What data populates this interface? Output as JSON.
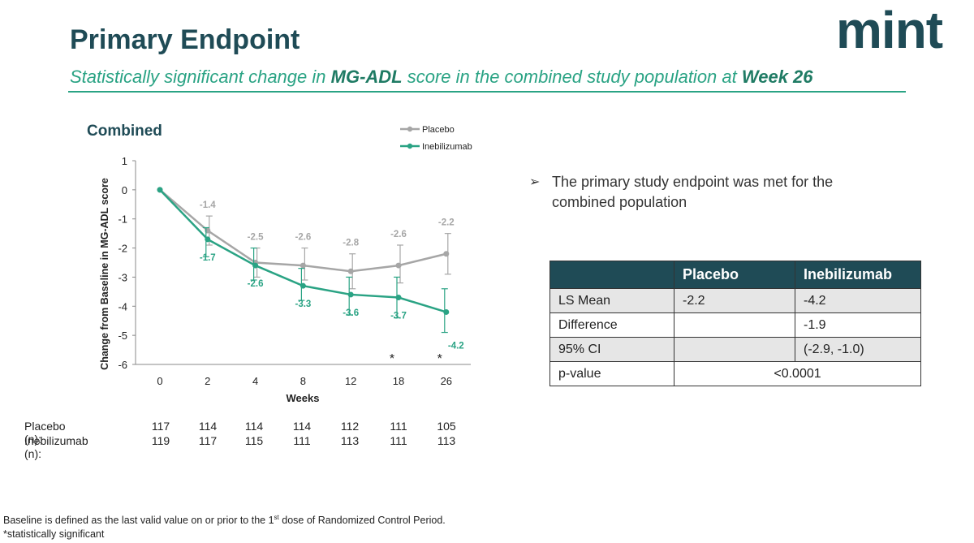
{
  "header": {
    "title": "Primary Endpoint",
    "subtitle_parts": [
      "Statistically significant change in ",
      "MG-ADL",
      " score in the combined study population at ",
      "Week 26"
    ],
    "logo_text": "mint"
  },
  "chart_data": {
    "type": "line",
    "title": "Combined",
    "xlabel": "Weeks",
    "ylabel": "Change from Baseline in MG-ADL score",
    "categories": [
      "0",
      "2",
      "4",
      "8",
      "12",
      "18",
      "26"
    ],
    "ylim": [
      -6,
      1
    ],
    "yticks": [
      1,
      0,
      -1,
      -2,
      -3,
      -4,
      -5,
      -6
    ],
    "legend_position": "top-right",
    "series": [
      {
        "name": "Placebo",
        "color": "#a6a6a6",
        "values": [
          0,
          -1.4,
          -2.5,
          -2.6,
          -2.8,
          -2.6,
          -2.2
        ],
        "labels": [
          "",
          "-1.4",
          "-2.5",
          "-2.6",
          "-2.8",
          "-2.6",
          "-2.2"
        ],
        "error_low": [
          null,
          -1.9,
          -3.0,
          -3.1,
          -3.4,
          -3.2,
          -2.9
        ],
        "error_high": [
          null,
          -0.9,
          -2.0,
          -2.0,
          -2.2,
          -1.9,
          -1.5
        ]
      },
      {
        "name": "Inebilizumab",
        "color": "#2aa384",
        "values": [
          0,
          -1.7,
          -2.6,
          -3.3,
          -3.6,
          -3.7,
          -4.2
        ],
        "labels": [
          "",
          "-1.7",
          "-2.6",
          "-3.3",
          "-3.6",
          "-3.7",
          "-4.2"
        ],
        "error_low": [
          null,
          -2.3,
          -3.1,
          -3.8,
          -4.3,
          -4.4,
          -4.9
        ],
        "error_high": [
          null,
          -1.3,
          -2.0,
          -2.7,
          -3.0,
          -3.0,
          -3.4
        ]
      }
    ],
    "significance_marks": [
      "",
      "",
      "",
      "",
      "",
      "*",
      "*"
    ]
  },
  "bullet": {
    "text": "The primary study endpoint was met for the combined population"
  },
  "stats_table": {
    "headers": [
      "",
      "Placebo",
      "Inebilizumab"
    ],
    "rows": [
      [
        "LS Mean",
        "-2.2",
        "-4.2"
      ],
      [
        "Difference",
        "",
        "-1.9"
      ],
      [
        "95% CI",
        "",
        "(-2.9, -1.0)"
      ],
      [
        "p-value",
        "<0.0001"
      ]
    ]
  },
  "n_table": {
    "placebo_label": "Placebo (n):",
    "placebo_values": [
      "117",
      "114",
      "114",
      "114",
      "112",
      "111",
      "105"
    ],
    "ineb_label": "Inebilizumab (n):",
    "ineb_values": [
      "119",
      "117",
      "115",
      "111",
      "113",
      "111",
      "113"
    ]
  },
  "footnotes": {
    "line1_pre": "Baseline is defined as the last valid value on or prior to the 1",
    "line1_sup": "st",
    "line1_post": " dose of Randomized Control Period.",
    "line2": "*statistically significant"
  }
}
